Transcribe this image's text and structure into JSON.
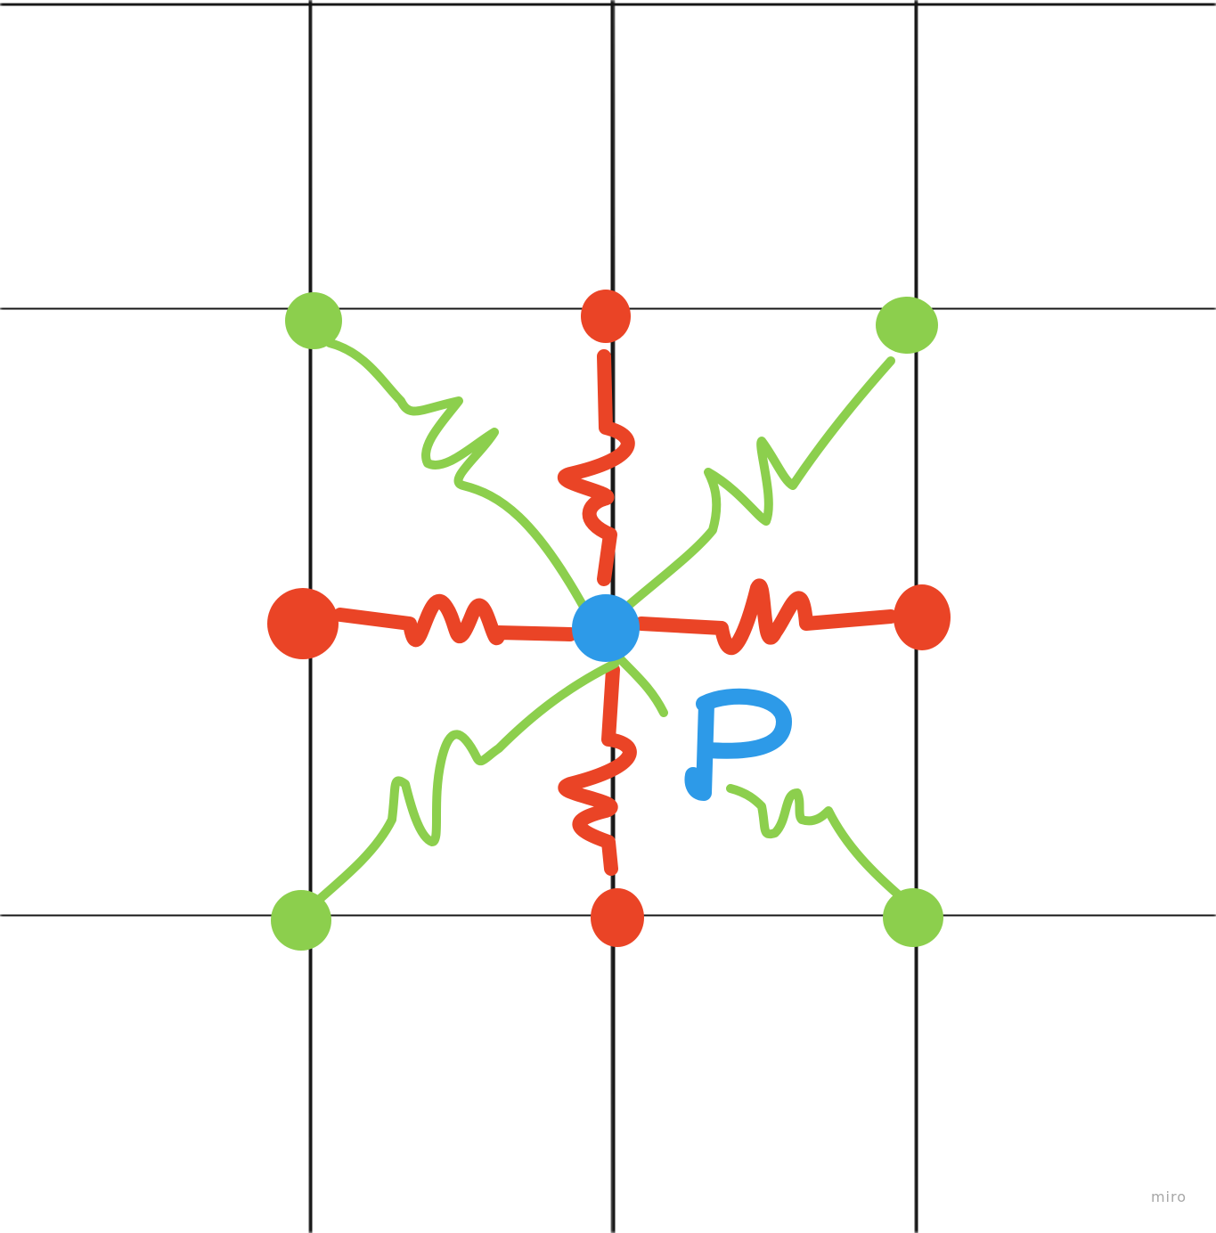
{
  "diagram": {
    "center_label": "P",
    "colors": {
      "grid": "#121212",
      "background": "#ffffff",
      "orthogonal_springs": "#ea4426",
      "diagonal_springs": "#8ccf4d",
      "center_node": "#2d9ae8",
      "label": "#2d9ae8"
    },
    "orthogonal_neighbors": [
      "top",
      "right",
      "bottom",
      "left"
    ],
    "diagonal_neighbors": [
      "top-left",
      "top-right",
      "bottom-right",
      "bottom-left"
    ]
  },
  "watermark": {
    "text": "miro"
  }
}
